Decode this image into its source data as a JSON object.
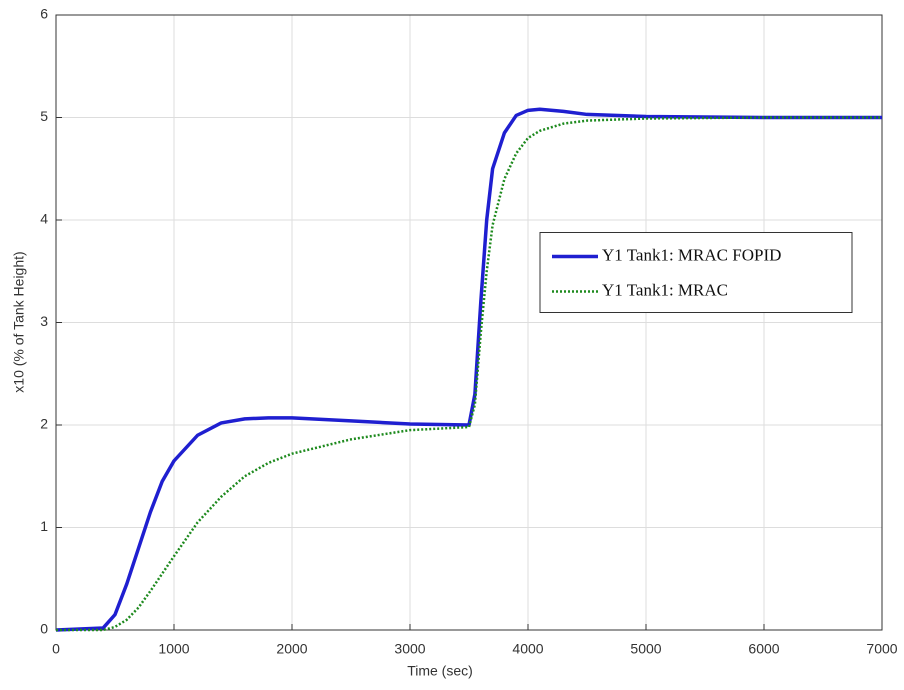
{
  "chart_data": {
    "type": "line",
    "x_label": "Time (sec)",
    "y_label": "x10 (% of Tank Height)",
    "x": [
      0,
      400,
      500,
      600,
      700,
      800,
      900,
      1000,
      1200,
      1400,
      1600,
      1800,
      2000,
      2500,
      3000,
      3500,
      3550,
      3600,
      3650,
      3700,
      3800,
      3900,
      4000,
      4100,
      4300,
      4500,
      5000,
      6000,
      7000
    ],
    "series": [
      {
        "name": "Y1 Tank1: MRAC FOPID",
        "color": "#1f1fd0",
        "style": "solid",
        "values": [
          0,
          0.02,
          0.15,
          0.45,
          0.8,
          1.15,
          1.45,
          1.65,
          1.9,
          2.02,
          2.06,
          2.07,
          2.07,
          2.04,
          2.01,
          2.0,
          2.3,
          3.2,
          4.0,
          4.5,
          4.85,
          5.02,
          5.07,
          5.08,
          5.06,
          5.03,
          5.01,
          5.0,
          5.0
        ]
      },
      {
        "name": "Y1 Tank1: MRAC",
        "color": "#1e8a1e",
        "style": "dotted",
        "values": [
          0,
          0.0,
          0.03,
          0.1,
          0.22,
          0.38,
          0.55,
          0.72,
          1.05,
          1.3,
          1.5,
          1.63,
          1.72,
          1.86,
          1.95,
          1.98,
          2.2,
          2.9,
          3.5,
          3.95,
          4.4,
          4.65,
          4.8,
          4.87,
          4.94,
          4.97,
          4.99,
          5.0,
          5.0
        ]
      }
    ],
    "xlim": [
      0,
      7000
    ],
    "xticks": [
      0,
      1000,
      2000,
      3000,
      4000,
      5000,
      6000,
      7000
    ],
    "ylim": [
      0,
      6
    ],
    "yticks": [
      0,
      1,
      2,
      3,
      4,
      5,
      6
    ],
    "grid": true,
    "legend": "center-right"
  }
}
